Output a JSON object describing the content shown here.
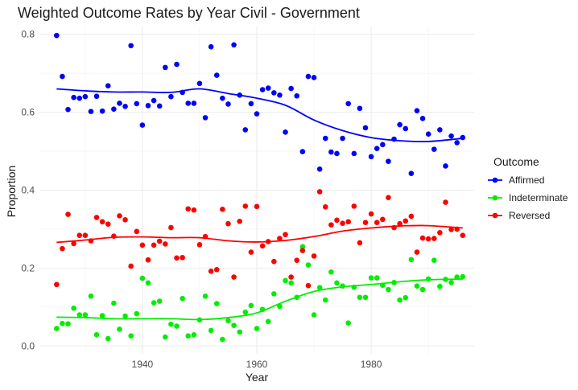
{
  "chart_data": {
    "type": "scatter",
    "title": "Weighted Outcome Rates by Year Civil - Government",
    "xlabel": "Year",
    "ylabel": "Proportion",
    "xlim": [
      1922,
      1998
    ],
    "ylim": [
      -0.02,
      0.82
    ],
    "x_ticks": [
      1940,
      1960,
      1980
    ],
    "y_ticks": [
      0.0,
      0.2,
      0.4,
      0.6,
      0.8
    ],
    "y_tick_labels": [
      "0.0",
      "0.2",
      "0.4",
      "0.6",
      "0.8"
    ],
    "grid": true,
    "legend": {
      "title": "Outcome",
      "position": "right"
    },
    "series": [
      {
        "name": "Affirmed",
        "color": "#0000ff",
        "x": [
          1925,
          1926,
          1927,
          1928,
          1929,
          1930,
          1931,
          1932,
          1933,
          1934,
          1935,
          1936,
          1937,
          1938,
          1939,
          1940,
          1941,
          1942,
          1943,
          1944,
          1945,
          1946,
          1947,
          1948,
          1949,
          1950,
          1951,
          1952,
          1953,
          1954,
          1955,
          1956,
          1957,
          1958,
          1959,
          1960,
          1961,
          1962,
          1963,
          1964,
          1965,
          1966,
          1967,
          1968,
          1969,
          1970,
          1971,
          1972,
          1973,
          1974,
          1975,
          1976,
          1977,
          1978,
          1979,
          1980,
          1981,
          1982,
          1983,
          1984,
          1985,
          1986,
          1987,
          1988,
          1989,
          1990,
          1991,
          1992,
          1993,
          1994,
          1995,
          1996
        ],
        "y": [
          0.797,
          0.692,
          0.607,
          0.638,
          0.636,
          0.64,
          0.602,
          0.641,
          0.603,
          0.668,
          0.608,
          0.623,
          0.615,
          0.771,
          0.622,
          0.567,
          0.617,
          0.63,
          0.616,
          0.715,
          0.64,
          0.723,
          0.651,
          0.623,
          0.623,
          0.674,
          0.586,
          0.768,
          0.695,
          0.636,
          0.621,
          0.773,
          0.644,
          0.555,
          0.622,
          0.596,
          0.658,
          0.662,
          0.65,
          0.644,
          0.549,
          0.661,
          0.642,
          0.499,
          0.692,
          0.689,
          0.454,
          0.533,
          0.498,
          0.494,
          0.533,
          0.622,
          0.494,
          0.61,
          0.56,
          0.486,
          0.507,
          0.517,
          0.474,
          0.531,
          0.568,
          0.558,
          0.443,
          0.604,
          0.584,
          0.544,
          0.505,
          0.555,
          0.462,
          0.539,
          0.522,
          0.535
        ],
        "trend": {
          "x": [
            1925,
            1930,
            1935,
            1940,
            1945,
            1950,
            1955,
            1960,
            1965,
            1970,
            1975,
            1980,
            1985,
            1990,
            1996
          ],
          "y": [
            0.66,
            0.655,
            0.652,
            0.652,
            0.651,
            0.66,
            0.648,
            0.636,
            0.618,
            0.58,
            0.553,
            0.535,
            0.527,
            0.525,
            0.533
          ]
        }
      },
      {
        "name": "Indeterminate",
        "color": "#00ee00",
        "x": [
          1925,
          1926,
          1927,
          1928,
          1929,
          1930,
          1931,
          1932,
          1933,
          1934,
          1935,
          1936,
          1937,
          1938,
          1939,
          1940,
          1941,
          1942,
          1943,
          1944,
          1945,
          1946,
          1947,
          1948,
          1949,
          1950,
          1951,
          1952,
          1953,
          1954,
          1955,
          1956,
          1957,
          1958,
          1959,
          1960,
          1961,
          1962,
          1963,
          1964,
          1965,
          1966,
          1967,
          1968,
          1969,
          1970,
          1971,
          1972,
          1973,
          1974,
          1975,
          1976,
          1977,
          1978,
          1979,
          1980,
          1981,
          1982,
          1983,
          1984,
          1985,
          1986,
          1987,
          1988,
          1989,
          1990,
          1991,
          1992,
          1993,
          1994,
          1995,
          1996
        ],
        "y": [
          0.045,
          0.058,
          0.057,
          0.097,
          0.08,
          0.08,
          0.128,
          0.029,
          0.078,
          0.019,
          0.11,
          0.043,
          0.077,
          0.026,
          0.083,
          0.174,
          0.162,
          0.111,
          0.115,
          0.023,
          0.056,
          0.051,
          0.122,
          0.026,
          0.029,
          0.067,
          0.128,
          0.04,
          0.109,
          0.017,
          0.065,
          0.053,
          0.036,
          0.087,
          0.104,
          0.045,
          0.094,
          0.063,
          0.134,
          0.102,
          0.168,
          0.162,
          0.125,
          0.255,
          0.208,
          0.08,
          0.15,
          0.118,
          0.19,
          0.162,
          0.154,
          0.059,
          0.151,
          0.125,
          0.125,
          0.175,
          0.175,
          0.156,
          0.145,
          0.163,
          0.118,
          0.124,
          0.222,
          0.154,
          0.145,
          0.172,
          0.22,
          0.153,
          0.171,
          0.163,
          0.177,
          0.178
        ],
        "trend": {
          "x": [
            1925,
            1930,
            1935,
            1940,
            1945,
            1950,
            1955,
            1960,
            1965,
            1970,
            1975,
            1980,
            1985,
            1990,
            1996
          ],
          "y": [
            0.074,
            0.073,
            0.07,
            0.07,
            0.07,
            0.068,
            0.073,
            0.085,
            0.115,
            0.14,
            0.152,
            0.158,
            0.165,
            0.17,
            0.172
          ]
        }
      },
      {
        "name": "Reversed",
        "color": "#ff0000",
        "x": [
          1925,
          1926,
          1927,
          1928,
          1929,
          1930,
          1931,
          1932,
          1933,
          1934,
          1935,
          1936,
          1937,
          1938,
          1939,
          1940,
          1941,
          1942,
          1943,
          1944,
          1945,
          1946,
          1947,
          1948,
          1949,
          1950,
          1951,
          1952,
          1953,
          1954,
          1955,
          1956,
          1957,
          1958,
          1959,
          1960,
          1961,
          1962,
          1963,
          1964,
          1965,
          1966,
          1967,
          1968,
          1969,
          1970,
          1971,
          1972,
          1973,
          1974,
          1975,
          1976,
          1977,
          1978,
          1979,
          1980,
          1981,
          1982,
          1983,
          1984,
          1985,
          1986,
          1987,
          1988,
          1989,
          1990,
          1991,
          1992,
          1993,
          1994,
          1995,
          1996
        ],
        "y": [
          0.158,
          0.25,
          0.338,
          0.263,
          0.284,
          0.284,
          0.27,
          0.33,
          0.319,
          0.313,
          0.282,
          0.334,
          0.324,
          0.205,
          0.294,
          0.259,
          0.221,
          0.259,
          0.269,
          0.262,
          0.304,
          0.226,
          0.227,
          0.352,
          0.349,
          0.26,
          0.281,
          0.192,
          0.196,
          0.351,
          0.314,
          0.177,
          0.32,
          0.359,
          0.241,
          0.358,
          0.257,
          0.268,
          0.217,
          0.276,
          0.286,
          0.177,
          0.22,
          0.245,
          0.155,
          0.231,
          0.396,
          0.357,
          0.311,
          0.323,
          0.315,
          0.319,
          0.359,
          0.265,
          0.317,
          0.339,
          0.317,
          0.325,
          0.381,
          0.304,
          0.314,
          0.321,
          0.333,
          0.241,
          0.277,
          0.275,
          0.276,
          0.291,
          0.369,
          0.299,
          0.3,
          0.284
        ],
        "trend": {
          "x": [
            1925,
            1930,
            1935,
            1940,
            1945,
            1950,
            1955,
            1960,
            1965,
            1970,
            1975,
            1980,
            1985,
            1990,
            1996
          ],
          "y": [
            0.266,
            0.272,
            0.279,
            0.28,
            0.278,
            0.278,
            0.27,
            0.267,
            0.271,
            0.281,
            0.295,
            0.303,
            0.308,
            0.309,
            0.303
          ]
        }
      }
    ]
  }
}
